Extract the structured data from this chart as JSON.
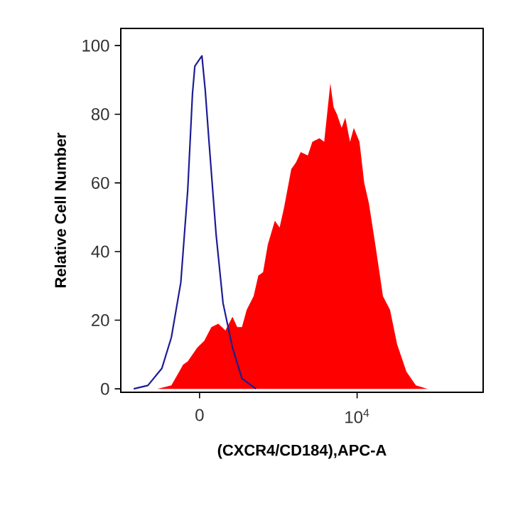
{
  "chart_data": {
    "type": "area",
    "xlabel": "(CXCR4/CD184),APC-A",
    "ylabel": "Relative Cell Number",
    "xlim": [
      -5000,
      18000
    ],
    "xticks": [
      0,
      {
        "value": 10000,
        "label": "10$^{4}$"
      }
    ],
    "ylim": [
      -1,
      105
    ],
    "yticks": [
      0,
      20,
      40,
      60,
      80,
      100
    ],
    "series": [
      {
        "color": "#ff0000",
        "x": [
          -2690,
          -1790,
          -1050,
          -750,
          -150,
          300,
          750,
          1190,
          1640,
          2090,
          2390,
          2690,
          2990,
          3430,
          3730,
          4030,
          4330,
          4780,
          5080,
          5370,
          5820,
          6120,
          6420,
          6870,
          7160,
          7610,
          7910,
          8300,
          8510,
          8720,
          9020,
          9250,
          9550,
          9790,
          10150,
          10450,
          10750,
          11190,
          11640,
          12090,
          12540,
          13130,
          13730,
          14480
        ],
        "values": [
          0,
          1,
          7,
          8,
          12,
          14,
          18,
          19,
          17,
          21,
          18,
          18,
          23,
          27,
          33,
          34,
          42,
          49,
          47,
          53,
          64,
          66,
          69,
          68,
          72,
          73,
          72,
          89,
          82,
          80,
          76,
          79,
          72,
          76,
          72,
          60,
          54,
          41,
          27,
          23,
          13,
          5,
          1,
          0
        ]
      },
      {
        "type": "line",
        "color": "#1c1c94",
        "x": [
          -4180,
          -3280,
          -2390,
          -1790,
          -1190,
          -750,
          -450,
          -300,
          0,
          150,
          360,
          600,
          1050,
          1490,
          2090,
          2690,
          3580
        ],
        "values": [
          0,
          1,
          6,
          15,
          31,
          58,
          86,
          94,
          96,
          97,
          87,
          72,
          45,
          25,
          12,
          3,
          0
        ]
      }
    ]
  }
}
